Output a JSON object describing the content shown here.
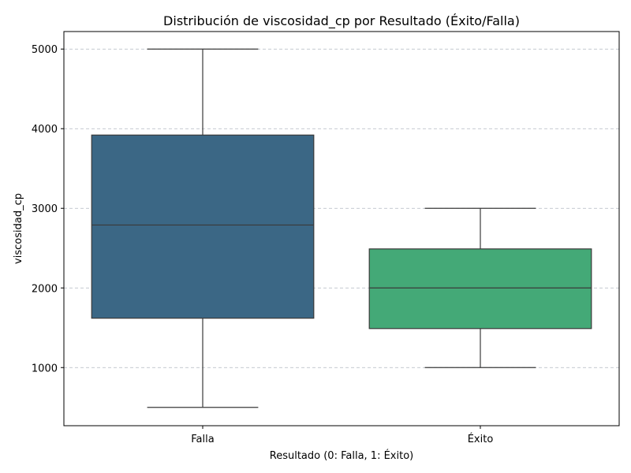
{
  "chart_data": {
    "type": "box",
    "title": "Distribución de viscosidad_cp por Resultado (Éxito/Falla)",
    "xlabel": "Resultado (0: Falla, 1: Éxito)",
    "ylabel": "viscosidad_cp",
    "ylim": [
      270,
      5220
    ],
    "yticks": [
      1000,
      2000,
      3000,
      4000,
      5000
    ],
    "grid": "y-dashed",
    "categories": [
      "Falla",
      "Éxito"
    ],
    "boxes": [
      {
        "category": "Falla",
        "whisker_low": 500,
        "q1": 1620,
        "median": 2790,
        "q3": 3920,
        "whisker_high": 5000,
        "color": "#3b6785"
      },
      {
        "category": "Éxito",
        "whisker_low": 1000,
        "q1": 1490,
        "median": 2000,
        "q3": 2490,
        "whisker_high": 3000,
        "color": "#44a977"
      }
    ]
  }
}
